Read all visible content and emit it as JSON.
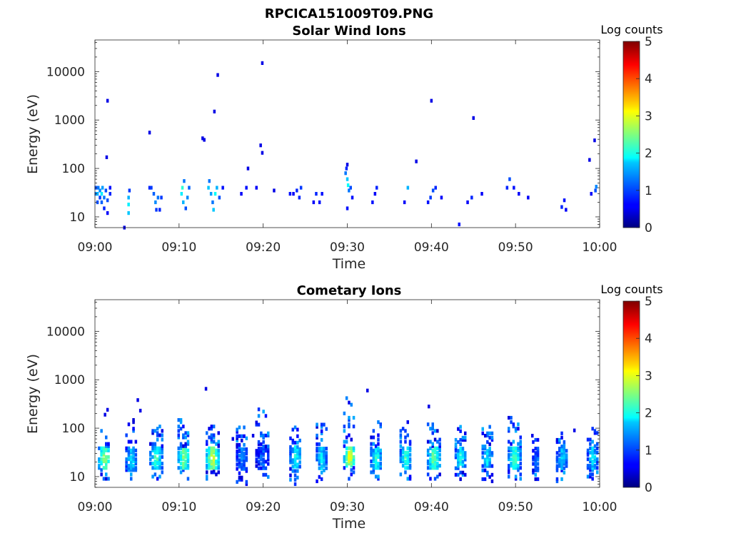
{
  "figure_title": "RPCICA151009T09.PNG",
  "chart_data": [
    {
      "type": "heatmap",
      "title": "Solar Wind Ions",
      "xlabel": "Time",
      "ylabel": "Energy (eV)",
      "x_ticks": [
        "09:00",
        "09:10",
        "09:20",
        "09:30",
        "09:40",
        "09:50",
        "10:00"
      ],
      "xlim_minutes": [
        0,
        60
      ],
      "y_scale": "log",
      "ylim": [
        6,
        45000
      ],
      "y_ticks": [
        10,
        100,
        1000,
        10000
      ],
      "y_tick_labels": [
        "10",
        "100",
        "1000",
        "10000"
      ],
      "colorbar": {
        "label": "Log counts",
        "range": [
          0,
          5
        ],
        "ticks": [
          "0",
          "1",
          "2",
          "3",
          "4",
          "5"
        ],
        "colormap": "jet"
      },
      "grid": false,
      "cells": [
        [
          0.1,
          30,
          1.2
        ],
        [
          0.1,
          40,
          1.0
        ],
        [
          0.3,
          20,
          1.0
        ],
        [
          0.3,
          30,
          1.5
        ],
        [
          0.4,
          40,
          1.2
        ],
        [
          0.6,
          25,
          0.9
        ],
        [
          0.6,
          35,
          1.3
        ],
        [
          0.8,
          20,
          1.1
        ],
        [
          0.8,
          30,
          1.8
        ],
        [
          0.9,
          40,
          1.4
        ],
        [
          1.1,
          15,
          0.8
        ],
        [
          1.1,
          25,
          1.2
        ],
        [
          1.3,
          35,
          1.0
        ],
        [
          1.5,
          12,
          0.6
        ],
        [
          1.5,
          22,
          1.0
        ],
        [
          1.8,
          30,
          0.8
        ],
        [
          1.8,
          40,
          0.7
        ],
        [
          4.0,
          12,
          1.6
        ],
        [
          4.0,
          18,
          1.8
        ],
        [
          4.0,
          25,
          1.5
        ],
        [
          4.1,
          35,
          0.9
        ],
        [
          6.5,
          40,
          0.8
        ],
        [
          6.7,
          40,
          0.9
        ],
        [
          7.0,
          30,
          1.1
        ],
        [
          7.2,
          20,
          1.3
        ],
        [
          7.3,
          14,
          0.9
        ],
        [
          7.5,
          25,
          1.2
        ],
        [
          7.7,
          14,
          0.8
        ],
        [
          7.9,
          25,
          0.9
        ],
        [
          10.3,
          30,
          1.8
        ],
        [
          10.4,
          40,
          2.1
        ],
        [
          10.5,
          20,
          1.5
        ],
        [
          10.6,
          55,
          1.2
        ],
        [
          10.8,
          15,
          1.0
        ],
        [
          11.0,
          25,
          1.3
        ],
        [
          11.2,
          40,
          1.1
        ],
        [
          13.5,
          40,
          1.6
        ],
        [
          13.6,
          55,
          1.2
        ],
        [
          13.8,
          30,
          1.4
        ],
        [
          14.0,
          20,
          1.2
        ],
        [
          14.1,
          14,
          1.6
        ],
        [
          14.3,
          30,
          1.9
        ],
        [
          14.5,
          40,
          1.5
        ],
        [
          14.8,
          25,
          1.0
        ],
        [
          15.2,
          40,
          0.7
        ],
        [
          17.4,
          30,
          0.6
        ],
        [
          18.0,
          40,
          0.7
        ],
        [
          19.2,
          40,
          0.6
        ],
        [
          23.2,
          30,
          0.7
        ],
        [
          23.6,
          30,
          0.6
        ],
        [
          24.0,
          35,
          0.8
        ],
        [
          24.3,
          25,
          0.8
        ],
        [
          24.5,
          40,
          0.9
        ],
        [
          26.0,
          20,
          0.6
        ],
        [
          26.3,
          30,
          0.8
        ],
        [
          26.7,
          20,
          0.7
        ],
        [
          27.0,
          30,
          0.7
        ],
        [
          29.8,
          80,
          1.2
        ],
        [
          30.0,
          60,
          1.6
        ],
        [
          30.1,
          45,
          1.9
        ],
        [
          30.2,
          35,
          1.2
        ],
        [
          29.9,
          100,
          0.8
        ],
        [
          30.4,
          40,
          1.0
        ],
        [
          30.6,
          25,
          0.7
        ],
        [
          30.0,
          15,
          0.7
        ],
        [
          33.0,
          20,
          0.7
        ],
        [
          33.3,
          30,
          0.6
        ],
        [
          33.5,
          40,
          0.8
        ],
        [
          36.8,
          20,
          0.6
        ],
        [
          37.2,
          40,
          1.5
        ],
        [
          39.6,
          20,
          0.7
        ],
        [
          39.9,
          25,
          0.9
        ],
        [
          40.2,
          35,
          1.0
        ],
        [
          40.5,
          40,
          0.8
        ],
        [
          41.2,
          25,
          0.6
        ],
        [
          43.3,
          7,
          0.7
        ],
        [
          44.3,
          20,
          0.6
        ],
        [
          44.8,
          25,
          0.8
        ],
        [
          46.0,
          30,
          0.6
        ],
        [
          49.0,
          40,
          0.8
        ],
        [
          49.3,
          60,
          1.0
        ],
        [
          49.8,
          40,
          0.7
        ],
        [
          50.4,
          30,
          0.6
        ],
        [
          51.5,
          25,
          0.6
        ],
        [
          55.5,
          16,
          0.8
        ],
        [
          55.8,
          22,
          0.7
        ],
        [
          56.0,
          14,
          0.6
        ],
        [
          59.0,
          30,
          0.6
        ],
        [
          59.5,
          35,
          1.0
        ],
        [
          59.6,
          42,
          1.3
        ]
      ],
      "scatter_points": [
        [
          1.5,
          2500
        ],
        [
          1.4,
          170
        ],
        [
          3.5,
          6
        ],
        [
          6.5,
          550
        ],
        [
          12.8,
          420
        ],
        [
          13.0,
          390
        ],
        [
          14.2,
          1500
        ],
        [
          14.6,
          8500
        ],
        [
          18.2,
          100
        ],
        [
          19.7,
          300
        ],
        [
          19.9,
          210
        ],
        [
          19.9,
          15000
        ],
        [
          21.3,
          35
        ],
        [
          30.0,
          120
        ],
        [
          38.2,
          140
        ],
        [
          40.0,
          2500
        ],
        [
          45.0,
          1100
        ],
        [
          58.8,
          150
        ],
        [
          59.4,
          380
        ]
      ]
    },
    {
      "type": "heatmap",
      "title": "Cometary Ions",
      "xlabel": "Time",
      "ylabel": "Energy (eV)",
      "x_ticks": [
        "09:00",
        "09:10",
        "09:20",
        "09:30",
        "09:40",
        "09:50",
        "10:00"
      ],
      "xlim_minutes": [
        0,
        60
      ],
      "y_scale": "log",
      "ylim": [
        6,
        45000
      ],
      "y_ticks": [
        10,
        100,
        1000,
        10000
      ],
      "y_tick_labels": [
        "10",
        "100",
        "1000",
        "10000"
      ],
      "colorbar": {
        "label": "Log counts",
        "range": [
          0,
          5
        ],
        "ticks": [
          "0",
          "1",
          "2",
          "3",
          "4",
          "5"
        ],
        "colormap": "jet"
      },
      "grid": false,
      "bursts": [
        [
          1.2,
          1.4,
          15,
          42,
          2.8,
          9,
          90
        ],
        [
          4.4,
          1.3,
          13,
          40,
          1.9,
          9,
          150
        ],
        [
          7.3,
          1.4,
          14,
          42,
          2.3,
          9,
          130
        ],
        [
          10.6,
          1.3,
          15,
          42,
          2.7,
          9,
          160
        ],
        [
          14.0,
          1.4,
          15,
          42,
          3.1,
          9,
          130
        ],
        [
          17.5,
          1.2,
          14,
          40,
          1.4,
          7,
          110
        ],
        [
          20.0,
          1.6,
          14,
          40,
          1.2,
          8,
          330
        ],
        [
          23.9,
          1.3,
          15,
          42,
          2.1,
          7,
          110
        ],
        [
          27.0,
          1.2,
          14,
          40,
          1.9,
          8,
          120
        ],
        [
          30.3,
          1.3,
          16,
          42,
          3.2,
          9,
          420
        ],
        [
          33.5,
          1.3,
          15,
          40,
          2.2,
          9,
          140
        ],
        [
          37.0,
          1.3,
          15,
          42,
          2.3,
          9,
          140
        ],
        [
          40.3,
          1.4,
          15,
          42,
          2.6,
          9,
          160
        ],
        [
          43.5,
          1.2,
          15,
          40,
          2.1,
          8,
          110
        ],
        [
          46.7,
          1.2,
          15,
          40,
          1.9,
          8,
          110
        ],
        [
          49.9,
          1.4,
          15,
          42,
          2.4,
          9,
          180
        ],
        [
          52.5,
          0.8,
          13,
          38,
          1.3,
          8,
          60
        ],
        [
          55.6,
          1.3,
          14,
          40,
          1.8,
          8,
          110
        ],
        [
          59.2,
          1.2,
          15,
          42,
          1.9,
          9,
          100
        ]
      ],
      "scatter_points": [
        [
          1.5,
          240
        ],
        [
          1.2,
          190
        ],
        [
          5.1,
          380
        ],
        [
          5.4,
          230
        ],
        [
          13.2,
          650
        ],
        [
          16.4,
          60
        ],
        [
          18.8,
          70
        ],
        [
          32.4,
          600
        ],
        [
          39.7,
          280
        ],
        [
          46.4,
          70
        ],
        [
          52.0,
          70
        ],
        [
          57.0,
          90
        ]
      ]
    }
  ]
}
